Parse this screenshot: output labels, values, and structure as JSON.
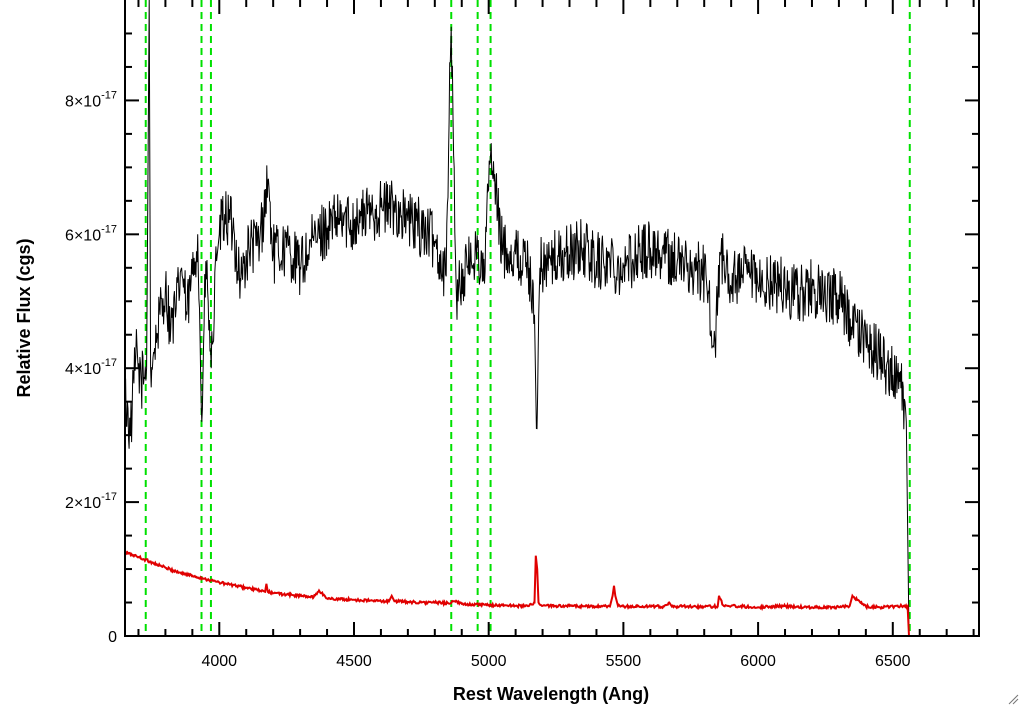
{
  "chart_data": {
    "type": "line",
    "xlabel": "Rest Wavelength (Ang)",
    "ylabel": "Relative Flux (cgs)",
    "xlim": [
      3650,
      6820
    ],
    "ylim": [
      0,
      9.5e-17
    ],
    "x_ticks": [
      4000,
      4500,
      5000,
      5500,
      6000,
      6500
    ],
    "x_tick_labels": [
      "4000",
      "4500",
      "5000",
      "5500",
      "6000",
      "6500"
    ],
    "y_ticks": [
      0,
      2e-17,
      4e-17,
      6e-17,
      8e-17
    ],
    "y_tick_labels": [
      {
        "mantissa": "0",
        "exponent": ""
      },
      {
        "mantissa": "2×10",
        "exponent": "-17"
      },
      {
        "mantissa": "4×10",
        "exponent": "-17"
      },
      {
        "mantissa": "6×10",
        "exponent": "-17"
      },
      {
        "mantissa": "8×10",
        "exponent": "-17"
      }
    ],
    "grid": false,
    "colors": {
      "flux": "#000000",
      "error": "#e00000",
      "lines": "#00e000",
      "axes": "#000000"
    },
    "series": [
      {
        "color": "#000000",
        "x": [
          3650,
          3670,
          3690,
          3710,
          3730,
          3740,
          3745,
          3760,
          3780,
          3800,
          3820,
          3840,
          3860,
          3880,
          3900,
          3920,
          3935,
          3950,
          3970,
          3990,
          4000,
          4020,
          4050,
          4080,
          4110,
          4150,
          4180,
          4200,
          4250,
          4300,
          4350,
          4400,
          4450,
          4500,
          4550,
          4600,
          4650,
          4700,
          4750,
          4800,
          4840,
          4861,
          4880,
          4920,
          4959,
          4980,
          5007,
          5050,
          5100,
          5150,
          5170,
          5177,
          5190,
          5230,
          5300,
          5350,
          5400,
          5450,
          5500,
          5550,
          5600,
          5650,
          5700,
          5750,
          5800,
          5840,
          5860,
          5880,
          5920,
          5960,
          6000,
          6050,
          6100,
          6150,
          6200,
          6250,
          6300,
          6350,
          6400,
          6450,
          6500,
          6530,
          6550,
          6560,
          6565,
          6580,
          6600,
          6700,
          6820
        ],
        "y": [
          3.6e-17,
          3e-17,
          4.2e-17,
          3.8e-17,
          4e-17,
          9.5e-17,
          4e-17,
          4.3e-17,
          4.8e-17,
          5.2e-17,
          4.6e-17,
          4.9e-17,
          5.5e-17,
          4.8e-17,
          5.4e-17,
          6e-17,
          3.2e-17,
          5.6e-17,
          4e-17,
          5.6e-17,
          6e-17,
          6.3e-17,
          6.1e-17,
          5.3e-17,
          5.8e-17,
          5.9e-17,
          6.8e-17,
          5.7e-17,
          5.8e-17,
          5.5e-17,
          5.9e-17,
          6.1e-17,
          6.2e-17,
          6.2e-17,
          6.3e-17,
          6.4e-17,
          6.4e-17,
          6.2e-17,
          6.1e-17,
          5.9e-17,
          5.4e-17,
          9.1e-17,
          5.1e-17,
          5.5e-17,
          5.8e-17,
          5.3e-17,
          7.2e-17,
          5.8e-17,
          5.7e-17,
          5.5e-17,
          4.8e-17,
          3.1e-17,
          5.5e-17,
          5.6e-17,
          5.7e-17,
          5.8e-17,
          5.6e-17,
          5.6e-17,
          5.5e-17,
          5.7e-17,
          5.8e-17,
          5.7e-17,
          5.6e-17,
          5.5e-17,
          5.4e-17,
          4.4e-17,
          5.7e-17,
          5.4e-17,
          5.3e-17,
          5.4e-17,
          5.2e-17,
          5.3e-17,
          5.2e-17,
          5.1e-17,
          5.2e-17,
          5e-17,
          5.1e-17,
          4.6e-17,
          4.4e-17,
          4.2e-17,
          3.9e-17,
          3.7e-17,
          3.2e-17,
          0,
          0,
          0,
          0,
          0,
          0
        ]
      },
      {
        "color": "#e00000",
        "x": [
          3650,
          3700,
          3750,
          3800,
          3850,
          3900,
          3950,
          4000,
          4050,
          4100,
          4150,
          4170,
          4175,
          4180,
          4200,
          4250,
          4300,
          4350,
          4370,
          4400,
          4450,
          4500,
          4550,
          4600,
          4630,
          4640,
          4650,
          4700,
          4750,
          4800,
          4850,
          4870,
          4900,
          4950,
          5000,
          5050,
          5100,
          5150,
          5170,
          5175,
          5180,
          5185,
          5200,
          5250,
          5300,
          5350,
          5400,
          5450,
          5460,
          5465,
          5470,
          5480,
          5500,
          5550,
          5600,
          5650,
          5670,
          5680,
          5700,
          5750,
          5800,
          5850,
          5855,
          5870,
          5900,
          5950,
          6000,
          6050,
          6100,
          6150,
          6200,
          6250,
          6300,
          6340,
          6350,
          6400,
          6450,
          6500,
          6540,
          6555,
          6560,
          6570,
          6600,
          6700,
          6820
        ],
        "y": [
          1.25e-17,
          1.18e-17,
          1.1e-17,
          1.02e-17,
          9.5e-18,
          9e-18,
          8.5e-18,
          8e-18,
          7.6e-18,
          7.2e-18,
          6.8e-18,
          6.6e-18,
          7.8e-18,
          6.6e-18,
          6.4e-18,
          6.2e-18,
          6e-18,
          5.8e-18,
          6.8e-18,
          5.6e-18,
          5.5e-18,
          5.4e-18,
          5.3e-18,
          5.2e-18,
          5.2e-18,
          6e-18,
          5.2e-18,
          5.1e-18,
          5e-18,
          5e-18,
          4.9e-18,
          5.2e-18,
          4.8e-18,
          4.7e-18,
          4.6e-18,
          4.6e-18,
          4.5e-18,
          4.5e-18,
          5e-18,
          1.2e-17,
          1e-17,
          5e-18,
          4.5e-18,
          4.5e-18,
          4.5e-18,
          4.4e-18,
          4.4e-18,
          4.4e-18,
          6e-18,
          7.5e-18,
          6e-18,
          4.5e-18,
          4.4e-18,
          4.4e-18,
          4.4e-18,
          4.4e-18,
          5e-18,
          4.4e-18,
          4.4e-18,
          4.4e-18,
          4.4e-18,
          4.4e-18,
          6e-18,
          4.6e-18,
          4.5e-18,
          4.4e-18,
          4.3e-18,
          4.4e-18,
          4.5e-18,
          4.3e-18,
          4.3e-18,
          4.3e-18,
          4.3e-18,
          4.5e-18,
          6e-18,
          4.4e-18,
          4.3e-18,
          4.4e-18,
          4.5e-18,
          4.4e-18,
          0,
          0,
          0,
          0,
          0
        ]
      }
    ],
    "vertical_lines": [
      3727,
      3934,
      3969,
      4861,
      4959,
      5007,
      6563
    ]
  }
}
